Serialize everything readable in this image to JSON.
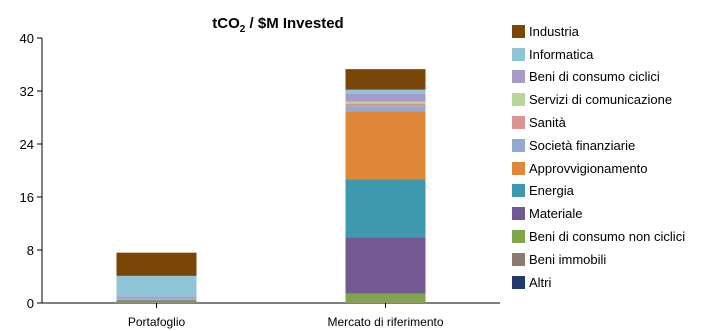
{
  "chart_data": {
    "type": "bar",
    "stacked": true,
    "title_main": "tCO",
    "title_sub": "2",
    "title_rest": " / $M Invested",
    "categories": [
      "Portafoglio",
      "Mercato di riferimento"
    ],
    "ylim": [
      0,
      40
    ],
    "yticks": [
      "0",
      "8",
      "16",
      "24",
      "32",
      "40"
    ],
    "grid": false,
    "legend_position": "right",
    "series": [
      {
        "name": "Altri",
        "color": "#1f3a6b",
        "values": [
          0,
          0
        ]
      },
      {
        "name": "Beni immobili",
        "color": "#8c7b6e",
        "values": [
          0.1,
          0.1
        ]
      },
      {
        "name": "Beni di consumo non ciclici",
        "color": "#7fa64a",
        "values": [
          0.1,
          1.3
        ]
      },
      {
        "name": "Materiale",
        "color": "#735891",
        "values": [
          0.1,
          8.5
        ]
      },
      {
        "name": "Energia",
        "color": "#3e98ae",
        "values": [
          0.1,
          8.8
        ]
      },
      {
        "name": "Approvvigionamento",
        "color": "#e08838",
        "values": [
          0.1,
          10.2
        ]
      },
      {
        "name": "Società finanziarie",
        "color": "#93a9cf",
        "values": [
          0.2,
          0.8
        ]
      },
      {
        "name": "Sanità",
        "color": "#d99594",
        "values": [
          0,
          0.4
        ]
      },
      {
        "name": "Servizi di comunicazione",
        "color": "#b9d697",
        "values": [
          0,
          0.3
        ]
      },
      {
        "name": "Beni di consumo ciclici",
        "color": "#a99bc7",
        "values": [
          0.3,
          1.2
        ]
      },
      {
        "name": "Informatica",
        "color": "#8fc5d7",
        "values": [
          3.1,
          0.6
        ]
      },
      {
        "name": "Industria",
        "color": "#7a4607",
        "values": [
          3.5,
          3.1
        ]
      }
    ]
  }
}
